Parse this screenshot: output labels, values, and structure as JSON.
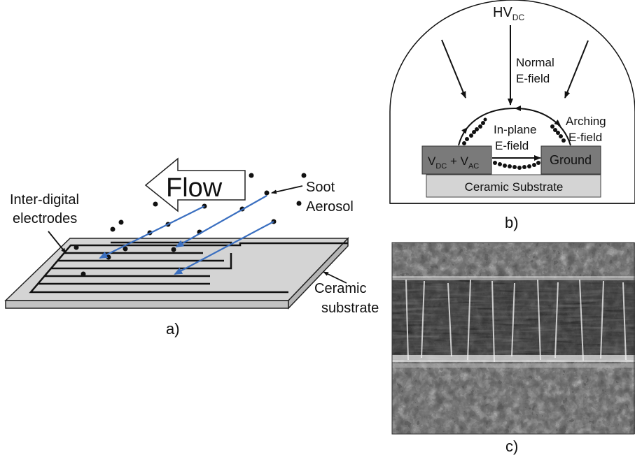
{
  "panel_a": {
    "flow_label": "Flow",
    "soot_label": "Soot",
    "aerosol_label": "Aerosol",
    "electrodes_label_line1": "Inter-digital",
    "electrodes_label_line2": "electrodes",
    "substrate_label_line1": "Ceramic",
    "substrate_label_line2": "substrate",
    "panel_label": "a)"
  },
  "panel_b": {
    "hv_main": "HV",
    "hv_sub": "DC",
    "normal_line1": "Normal",
    "normal_line2": "E-field",
    "arching_line1": "Arching",
    "arching_line2": "E-field",
    "inplane_line1": "In-plane",
    "inplane_line2": "E-field",
    "vdc_main": "V",
    "vdc_sub": "DC",
    "plus": " + V",
    "vac_sub": "AC",
    "ground_label": "Ground",
    "substrate_label": "Ceramic Substrate",
    "panel_label": "b)"
  },
  "panel_c": {
    "panel_label": "c)"
  },
  "colors": {
    "substrate_fill": "#d4d4d4",
    "electrode_fill": "#7a7a7a",
    "arrow_blue": "#3a6fc0",
    "text": "#111111"
  }
}
